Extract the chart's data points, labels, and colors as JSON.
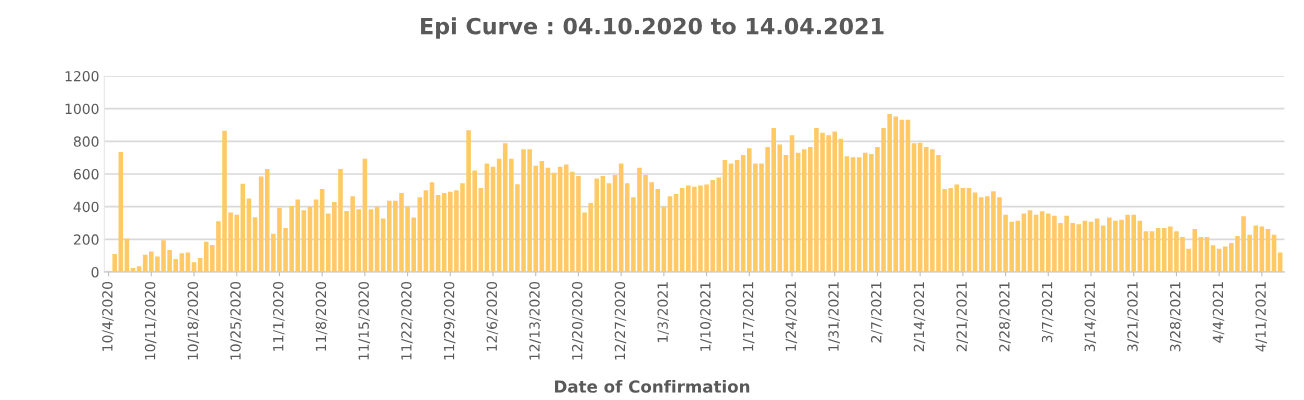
{
  "chart_data": {
    "type": "bar",
    "title": "Epi Curve : 04.10.2020 to 14.04.2021",
    "xlabel": "Date of Confirmation",
    "categories": [
      "10/4/2020",
      null,
      null,
      null,
      null,
      null,
      null,
      "10/11/2020",
      null,
      null,
      null,
      null,
      null,
      null,
      "10/18/2020",
      null,
      null,
      null,
      null,
      null,
      null,
      "10/25/2020",
      null,
      null,
      null,
      null,
      null,
      null,
      "11/1/2020",
      null,
      null,
      null,
      null,
      null,
      null,
      "11/8/2020",
      null,
      null,
      null,
      null,
      null,
      null,
      "11/15/2020",
      null,
      null,
      null,
      null,
      null,
      null,
      "11/22/2020",
      null,
      null,
      null,
      null,
      null,
      null,
      "11/29/2020",
      null,
      null,
      null,
      null,
      null,
      null,
      "12/6/2020",
      null,
      null,
      null,
      null,
      null,
      null,
      "12/13/2020",
      null,
      null,
      null,
      null,
      null,
      null,
      "12/20/2020",
      null,
      null,
      null,
      null,
      null,
      null,
      "12/27/2020",
      null,
      null,
      null,
      null,
      null,
      null,
      "1/3/2021",
      null,
      null,
      null,
      null,
      null,
      null,
      "1/10/2021",
      null,
      null,
      null,
      null,
      null,
      null,
      "1/17/2021",
      null,
      null,
      null,
      null,
      null,
      null,
      "1/24/2021",
      null,
      null,
      null,
      null,
      null,
      null,
      "1/31/2021",
      null,
      null,
      null,
      null,
      null,
      null,
      "2/7/2021",
      null,
      null,
      null,
      null,
      null,
      null,
      "2/14/2021",
      null,
      null,
      null,
      null,
      null,
      null,
      "2/21/2021",
      null,
      null,
      null,
      null,
      null,
      null,
      "2/28/2021",
      null,
      null,
      null,
      null,
      null,
      null,
      "3/7/2021",
      null,
      null,
      null,
      null,
      null,
      null,
      "3/14/2021",
      null,
      null,
      null,
      null,
      null,
      null,
      "3/21/2021",
      null,
      null,
      null,
      null,
      null,
      null,
      "3/28/2021",
      null,
      null,
      null,
      null,
      null,
      null,
      "4/4/2021",
      null,
      null,
      null,
      null,
      null,
      null,
      "4/11/2021",
      null,
      null,
      null
    ],
    "values": [
      5,
      110,
      735,
      205,
      25,
      35,
      105,
      125,
      95,
      195,
      135,
      80,
      115,
      120,
      60,
      85,
      185,
      165,
      310,
      865,
      365,
      350,
      540,
      450,
      335,
      585,
      630,
      234,
      394,
      270,
      404,
      444,
      378,
      400,
      444,
      508,
      358,
      428,
      630,
      374,
      464,
      384,
      694,
      384,
      400,
      328,
      436,
      436,
      484,
      400,
      334,
      458,
      500,
      550,
      472,
      484,
      492,
      500,
      544,
      868,
      622,
      514,
      664,
      644,
      694,
      788,
      694,
      538,
      752,
      752,
      650,
      680,
      638,
      608,
      644,
      658,
      614,
      588,
      364,
      422,
      572,
      588,
      544,
      594,
      664,
      544,
      458,
      638,
      594,
      550,
      508,
      400,
      464,
      478,
      514,
      530,
      522,
      530,
      536,
      564,
      578,
      686,
      664,
      686,
      716,
      758,
      664,
      664,
      766,
      882,
      780,
      716,
      838,
      730,
      752,
      766,
      882,
      852,
      838,
      860,
      816,
      708,
      702,
      702,
      730,
      722,
      766,
      882,
      968,
      952,
      932,
      932,
      788,
      792,
      766,
      752,
      716,
      508,
      514,
      536,
      514,
      514,
      486,
      458,
      464,
      494,
      458,
      350,
      308,
      314,
      358,
      378,
      350,
      372,
      358,
      344,
      300,
      344,
      300,
      292,
      314,
      308,
      328,
      284,
      334,
      314,
      320,
      350,
      350,
      314,
      250,
      250,
      270,
      270,
      278,
      250,
      214,
      142,
      264,
      214,
      214,
      164,
      142,
      156,
      178,
      220,
      342,
      228,
      284,
      278,
      264,
      228,
      120
    ],
    "color": "#ffc966",
    "ylim": [
      0,
      1200
    ],
    "yticks": [
      0,
      200,
      400,
      600,
      800,
      1000,
      1200
    ],
    "grid": "y"
  }
}
